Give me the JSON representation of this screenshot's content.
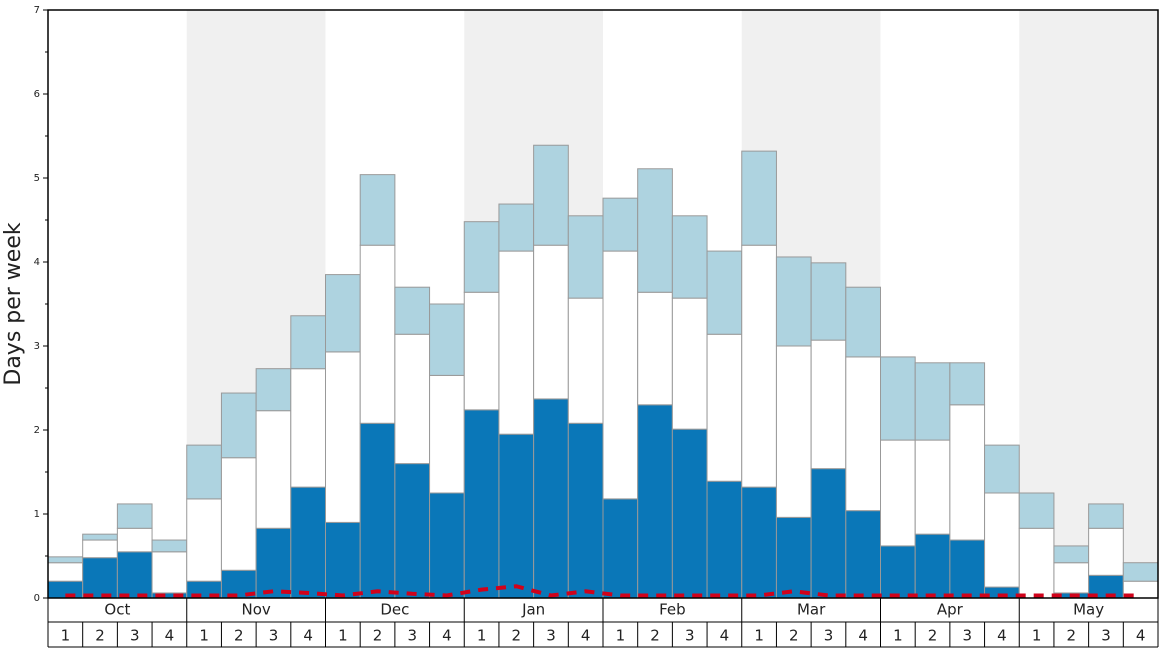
{
  "chart_data": {
    "type": "stacked-bar",
    "y_label": "Days per week",
    "categories": [
      "1",
      "2",
      "3",
      "4",
      "1",
      "2",
      "3",
      "4",
      "1",
      "2",
      "3",
      "4",
      "1",
      "2",
      "3",
      "4",
      "1",
      "2",
      "3",
      "4",
      "1",
      "2",
      "3",
      "4",
      "1",
      "2",
      "3",
      "4",
      "1",
      "2",
      "3",
      "4"
    ],
    "months": [
      "Oct",
      "Nov",
      "Dec",
      "Jan",
      "Feb",
      "Mar",
      "Apr",
      "May"
    ],
    "ylim": [
      0,
      7
    ],
    "yticks": [
      0,
      1,
      2,
      3,
      4,
      5,
      6,
      7
    ],
    "series": [
      {
        "color": "#0a77b8",
        "values": [
          0.2,
          0.48,
          0.55,
          0.06,
          0.2,
          0.33,
          0.83,
          1.32,
          0.9,
          2.08,
          1.6,
          1.25,
          2.24,
          1.95,
          2.37,
          2.08,
          1.18,
          2.3,
          2.01,
          1.39,
          1.32,
          0.96,
          1.54,
          1.04,
          0.62,
          0.76,
          0.69,
          0.13,
          0,
          0.06,
          0.27,
          0
        ]
      },
      {
        "color": "#ffffff",
        "values": [
          0.22,
          0.21,
          0.28,
          0.49,
          0.98,
          1.34,
          1.4,
          1.41,
          2.03,
          2.12,
          1.54,
          1.4,
          1.4,
          2.18,
          1.83,
          1.49,
          2.95,
          1.34,
          1.56,
          1.75,
          2.88,
          2.04,
          1.53,
          1.83,
          1.26,
          1.12,
          1.61,
          1.12,
          0.83,
          0.36,
          0.56,
          0.2
        ]
      },
      {
        "color": "#aed3e0",
        "values": [
          0.07,
          0.07,
          0.29,
          0.14,
          0.64,
          0.77,
          0.5,
          0.63,
          0.92,
          0.84,
          0.56,
          0.85,
          0.84,
          0.56,
          1.19,
          0.98,
          0.63,
          1.47,
          0.98,
          0.99,
          1.12,
          1.06,
          0.92,
          0.83,
          0.99,
          0.92,
          0.5,
          0.57,
          0.42,
          0.2,
          0.29,
          0.22
        ]
      }
    ],
    "line": {
      "color": "#d0021b",
      "values": [
        0.03,
        0.03,
        0.03,
        0.03,
        0.03,
        0.03,
        0.08,
        0.06,
        0.03,
        0.08,
        0.05,
        0.03,
        0.1,
        0.14,
        0.03,
        0.08,
        0.03,
        0.03,
        0.03,
        0.03,
        0.03,
        0.08,
        0.03,
        0.03,
        0.03,
        0.03,
        0.03,
        0.03,
        0.03,
        0.03,
        0.03,
        0.03
      ]
    }
  }
}
